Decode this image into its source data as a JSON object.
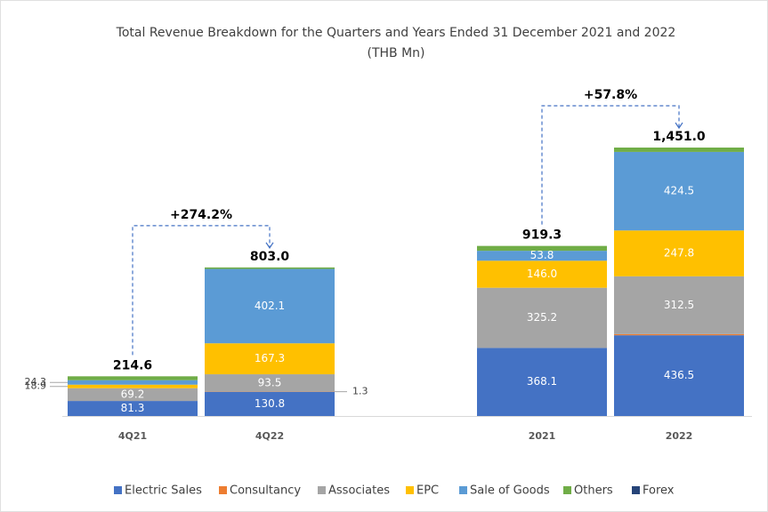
{
  "chart_data": {
    "type": "stacked_bar",
    "title": "Total Revenue Breakdown for the Quarters and Years Ended 31 December 2021 and 2022",
    "subtitle": "(THB Mn)",
    "categories": [
      "4Q21",
      "4Q22",
      "2021",
      "2022"
    ],
    "series": [
      {
        "name": "Electric Sales",
        "color": "#4472c4",
        "values": [
          81.3,
          130.8,
          368.1,
          436.5
        ],
        "value_labels": [
          "81.3",
          "130.8",
          "368.1",
          "436.5"
        ]
      },
      {
        "name": "Consultancy",
        "color": "#ed7d31",
        "values": [
          0,
          1.3,
          0,
          6.1
        ],
        "value_labels": [
          null,
          "1.3",
          "-",
          "6.1"
        ]
      },
      {
        "name": "Associates",
        "color": "#a5a5a5",
        "values": [
          69.2,
          93.5,
          325.2,
          312.5
        ],
        "value_labels": [
          "69.2",
          "93.5",
          "325.2",
          "312.5"
        ]
      },
      {
        "name": "EPC",
        "color": "#ffc000",
        "values": [
          18.9,
          167.3,
          146.0,
          247.8
        ],
        "value_labels": [
          "18.9",
          "167.3",
          "146.0",
          "247.8"
        ]
      },
      {
        "name": "Sale of Goods",
        "color": "#5b9bd5",
        "values": [
          24.3,
          402.1,
          53.8,
          424.5
        ],
        "value_labels": [
          "24.3",
          "402.1",
          "53.8",
          "424.5"
        ]
      },
      {
        "name": "Others",
        "color": "#70ad47",
        "values": [
          20.9,
          8.0,
          26.2,
          23.6
        ]
      },
      {
        "name": "Forex",
        "color": "#264478",
        "values": [
          0,
          0,
          0,
          0
        ]
      }
    ],
    "totals": [
      214.6,
      803.0,
      919.3,
      1451.0
    ],
    "total_labels": [
      "214.6",
      "803.0",
      "919.3",
      "1,451.0"
    ],
    "annotations": [
      {
        "label": "+274.2%",
        "from": "4Q21",
        "to": "4Q22"
      },
      {
        "label": "+57.8%",
        "from": "2021",
        "to": "2022"
      }
    ]
  }
}
